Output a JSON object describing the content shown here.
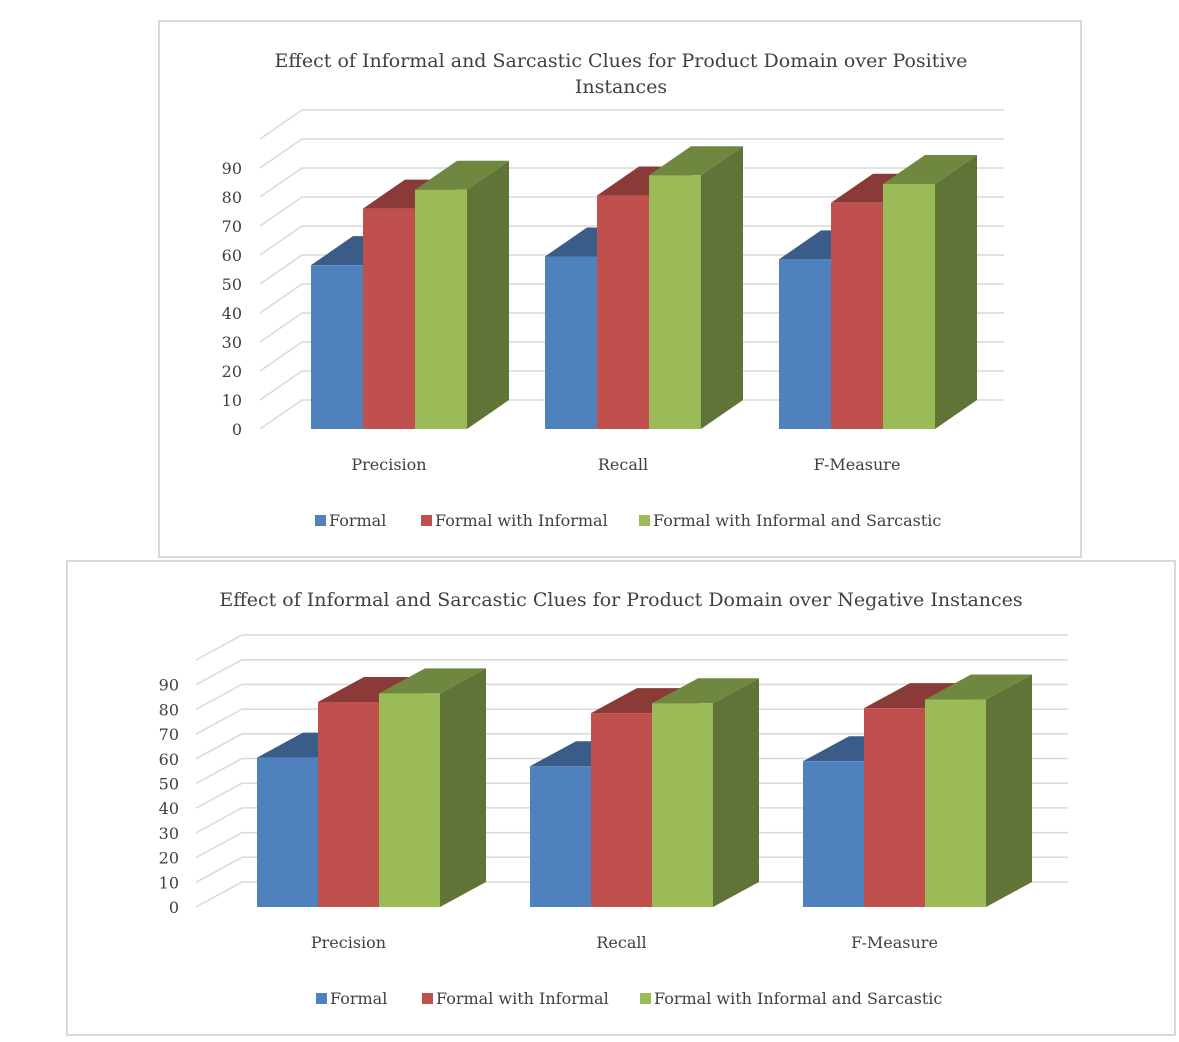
{
  "chart_data": [
    {
      "type": "bar",
      "style": "3d-clustered-column",
      "title_lines": [
        "Effect of Informal and Sarcastic Clues for Product Domain over Positive",
        "Instances"
      ],
      "categories": [
        "Precision",
        "Recall",
        "F-Measure"
      ],
      "series": [
        {
          "name": "Formal",
          "values": [
            56.5,
            59.5,
            58.5
          ],
          "color": "#4f81bd"
        },
        {
          "name": "Formal with Informal",
          "values": [
            76,
            80.5,
            78
          ],
          "color": "#c0504d"
        },
        {
          "name": "Formal with Informal and Sarcastic",
          "values": [
            82.5,
            87.5,
            84.5
          ],
          "color": "#9bbb59"
        }
      ],
      "y_ticks": [
        "0",
        "10",
        "20",
        "30",
        "40",
        "50",
        "60",
        "70",
        "80",
        "90"
      ],
      "ylim": [
        0,
        100
      ],
      "grid": true,
      "legend_position": "bottom"
    },
    {
      "type": "bar",
      "style": "3d-clustered-column",
      "title_lines": [
        "Effect of Informal and Sarcastic Clues for Product Domain over Negative Instances"
      ],
      "categories": [
        "Precision",
        "Recall",
        "F-Measure"
      ],
      "series": [
        {
          "name": "Formal",
          "values": [
            60.5,
            57,
            59
          ],
          "color": "#4f81bd"
        },
        {
          "name": "Formal with Informal",
          "values": [
            83,
            78.5,
            80.5
          ],
          "color": "#c0504d"
        },
        {
          "name": "Formal with Informal and Sarcastic",
          "values": [
            86.5,
            82.5,
            84
          ],
          "color": "#9bbb59"
        }
      ],
      "y_ticks": [
        "0",
        "10",
        "20",
        "30",
        "40",
        "50",
        "60",
        "70",
        "80",
        "90"
      ],
      "ylim": [
        0,
        100
      ],
      "grid": true,
      "legend_position": "bottom"
    }
  ]
}
